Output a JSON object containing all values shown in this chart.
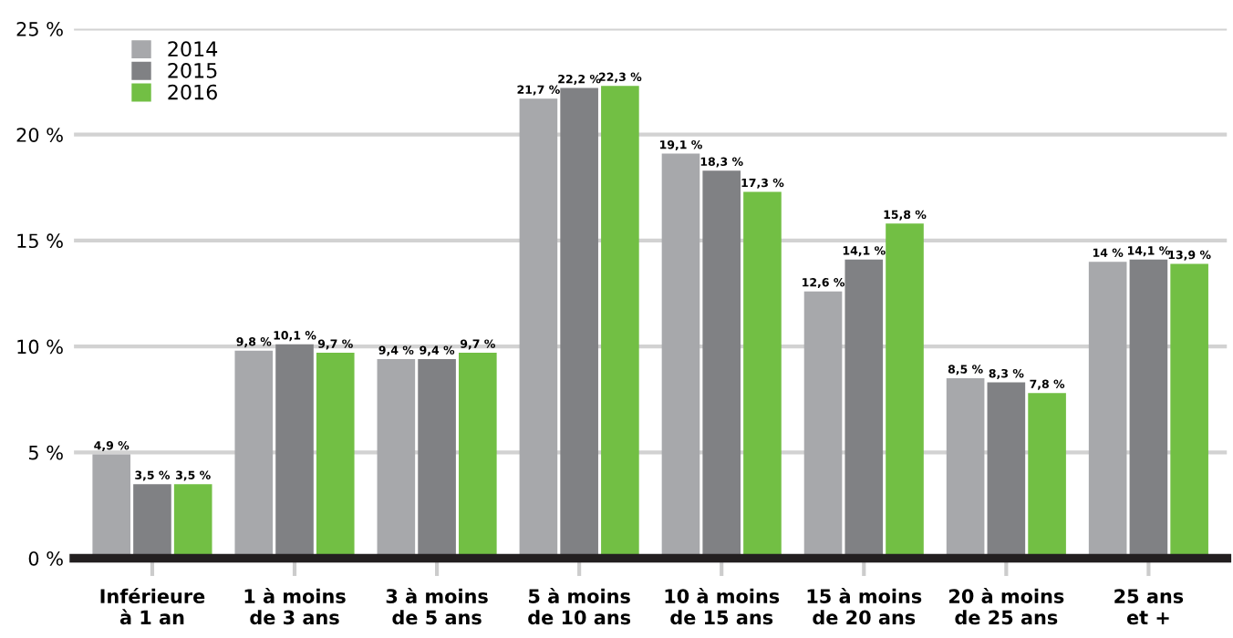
{
  "chart_data": {
    "type": "bar",
    "categories": [
      "Inférieure\nà 1 an",
      "1 à moins\nde 3 ans",
      "3 à moins\nde 5 ans",
      "5 à moins\nde 10 ans",
      "10 à moins\nde 15 ans",
      "15 à moins\nde 20 ans",
      "20 à moins\nde 25 ans",
      "25 ans\net +"
    ],
    "series": [
      {
        "name": "2014",
        "color": "#a7a8ab",
        "values": [
          4.9,
          9.8,
          9.4,
          21.7,
          19.1,
          12.6,
          8.5,
          14
        ],
        "value_labels": [
          "4,9 %",
          "9,8 %",
          "9,4 %",
          "21,7 %",
          "19,1 %",
          "12,6 %",
          "8,5 %",
          "14 %"
        ]
      },
      {
        "name": "2015",
        "color": "#808184",
        "values": [
          3.5,
          10.1,
          9.4,
          22.2,
          18.3,
          14.1,
          8.3,
          14.1
        ],
        "value_labels": [
          "3,5 %",
          "10,1 %",
          "9,4 %",
          "22,2 %",
          "18,3 %",
          "14,1 %",
          "8,3 %",
          "14,1 %"
        ]
      },
      {
        "name": "2016",
        "color": "#72bf44",
        "values": [
          3.5,
          9.7,
          9.7,
          22.3,
          17.3,
          15.8,
          7.8,
          13.9
        ],
        "value_labels": [
          "3,5 %",
          "9,7 %",
          "9,7 %",
          "22,3 %",
          "17,3 %",
          "15,8 %",
          "7,8 %",
          "13,9 %"
        ]
      }
    ],
    "ylim": [
      0,
      25
    ],
    "yticks": [
      {
        "value": 0,
        "label": "0 %"
      },
      {
        "value": 5,
        "label": "5 %"
      },
      {
        "value": 10,
        "label": "10 %"
      },
      {
        "value": 15,
        "label": "15 %"
      },
      {
        "value": 20,
        "label": "20 %"
      },
      {
        "value": 25,
        "label": "25 %"
      }
    ],
    "grid": "y",
    "legend": "top left"
  }
}
